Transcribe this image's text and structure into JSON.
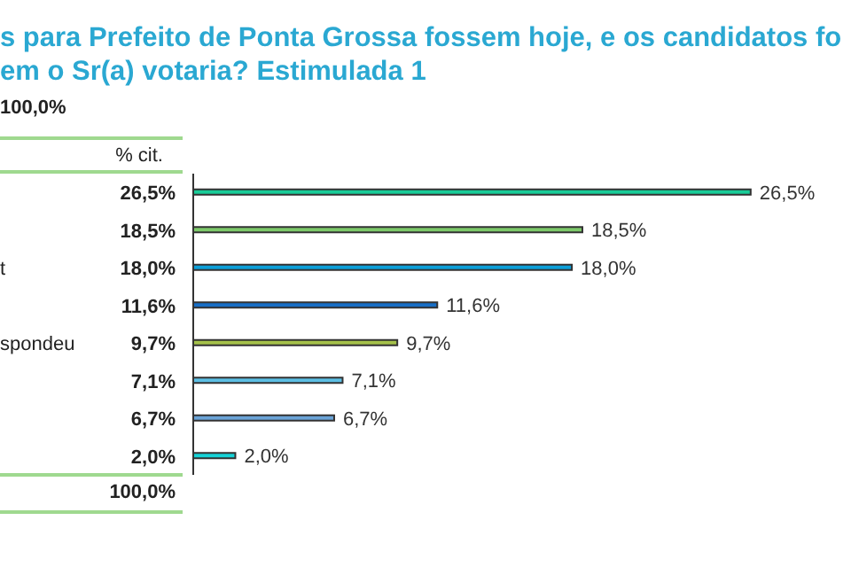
{
  "chart_data": {
    "type": "bar",
    "orientation": "horizontal",
    "title": "s para Prefeito de Ponta Grossa fossem hoje, e os candidatos fo\nem o Sr(a) votaria? Estimulada 1",
    "categories": [
      null,
      null,
      "t",
      null,
      "spondeu",
      null,
      null,
      null
    ],
    "values": [
      26.5,
      18.5,
      18.0,
      11.6,
      9.7,
      7.1,
      6.7,
      2.0
    ],
    "colors": [
      "#19cc98",
      "#7dc96a",
      "#0c9fd9",
      "#176ec6",
      "#a5c14a",
      "#5cbfe4",
      "#6aa3d7",
      "#16d2d6"
    ],
    "value_labels": [
      "26,5%",
      "18,5%",
      "18,0%",
      "11,6%",
      "9,7%",
      "7,1%",
      "6,7%",
      "2,0%"
    ],
    "annotations": [
      "100,0%",
      "% cit.",
      "100,0%"
    ]
  }
}
